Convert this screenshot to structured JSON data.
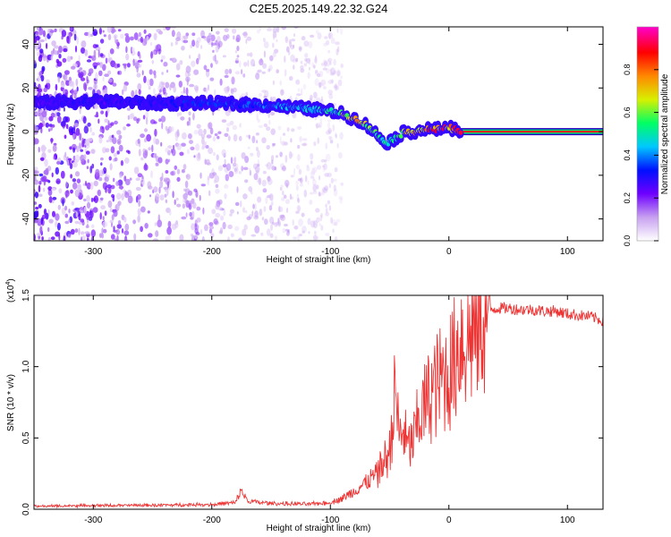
{
  "title": "C2E5.2025.149.22.32.G24",
  "chart_data": [
    {
      "type": "heatmap",
      "xlabel": "Height of straight line (km)",
      "ylabel": "Frequency (Hz)",
      "xlim": [
        -350,
        130
      ],
      "ylim": [
        -50,
        48
      ],
      "xticks": [
        "-300",
        "-200",
        "-100",
        "0",
        "100"
      ],
      "xtick_values": [
        -300,
        -200,
        -100,
        0,
        100
      ],
      "yticks": [
        "40",
        "20",
        "0",
        "-20",
        "-40"
      ],
      "ytick_values": [
        40,
        20,
        0,
        -20,
        -40
      ],
      "colorbar": {
        "label": "Normalized spectral amplitude",
        "range": [
          0,
          1
        ],
        "ticks": [
          "0.0",
          "0.2",
          "0.4",
          "0.6",
          "0.8"
        ],
        "tick_values": [
          0.0,
          0.2,
          0.4,
          0.6,
          0.8
        ],
        "colormap": [
          "#ffffff",
          "#c7a0f0",
          "#6e00ff",
          "#0010ff",
          "#00c8ff",
          "#00ff64",
          "#d8f000",
          "#ff8800",
          "#ff0000",
          "#ff00cc"
        ]
      },
      "ridge": {
        "x": [
          -350,
          -300,
          -250,
          -200,
          -150,
          -110,
          -95,
          -85,
          -75,
          -65,
          -58,
          -52,
          -45,
          -40,
          -35,
          -30,
          -20,
          -10,
          0,
          5,
          10,
          50,
          100,
          130
        ],
        "y": [
          13,
          14,
          13,
          13,
          12,
          10,
          9,
          7,
          5,
          1,
          -3,
          -5,
          -3,
          -1,
          0,
          0,
          1,
          1,
          2,
          1,
          0,
          0,
          0,
          0
        ],
        "amplitude": [
          0.25,
          0.3,
          0.3,
          0.35,
          0.4,
          0.5,
          0.55,
          0.7,
          0.75,
          0.6,
          0.55,
          0.5,
          0.55,
          0.6,
          0.7,
          0.75,
          0.8,
          0.85,
          0.85,
          0.8,
          1.0,
          1.0,
          1.0,
          1.0
        ]
      },
      "noise_extent_x": [
        -350,
        -90
      ],
      "grid": false
    },
    {
      "type": "line",
      "xlabel": "Height of straight line (km)",
      "ylabel": "SNR (10 * v/v)",
      "exponent_label": "(x10",
      "exponent": "4",
      "exponent_close": ")",
      "xlim": [
        -350,
        130
      ],
      "ylim": [
        0,
        15000
      ],
      "xticks": [
        "-300",
        "-200",
        "-100",
        "0",
        "100"
      ],
      "xtick_values": [
        -300,
        -200,
        -100,
        0,
        100
      ],
      "yticks": [
        "0.0",
        "0.5",
        "1.0",
        "1.5"
      ],
      "ytick_values": [
        0,
        5000,
        10000,
        15000
      ],
      "line_color": "#ee3333",
      "x": [
        -350,
        -300,
        -250,
        -200,
        -180,
        -175,
        -170,
        -150,
        -120,
        -100,
        -90,
        -80,
        -70,
        -60,
        -55,
        -50,
        -45,
        -42,
        -38,
        -35,
        -30,
        -25,
        -20,
        -15,
        -10,
        -5,
        0,
        5,
        10,
        15,
        20,
        25,
        30,
        35,
        40,
        50,
        60,
        70,
        80,
        90,
        100,
        110,
        120,
        130
      ],
      "y": [
        150,
        200,
        220,
        280,
        400,
        1300,
        500,
        350,
        300,
        400,
        700,
        1200,
        1800,
        2500,
        3300,
        4000,
        8500,
        5000,
        5600,
        4200,
        4800,
        6500,
        7300,
        8200,
        8700,
        9300,
        9500,
        10500,
        12200,
        11800,
        12400,
        13300,
        13800,
        14000,
        14100,
        14100,
        14000,
        14000,
        13900,
        13900,
        13700,
        13600,
        13500,
        13200
      ]
    }
  ]
}
